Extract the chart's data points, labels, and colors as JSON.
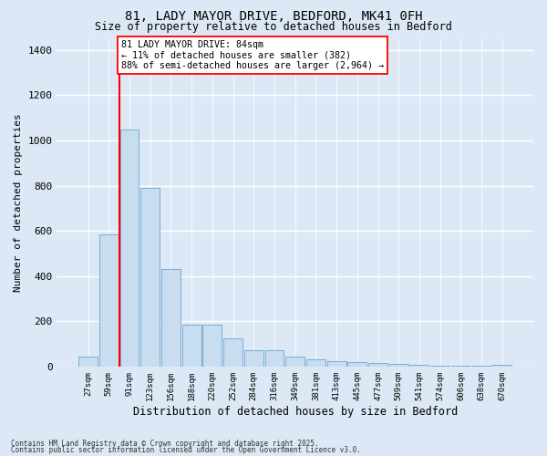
{
  "title": "81, LADY MAYOR DRIVE, BEDFORD, MK41 0FH",
  "subtitle": "Size of property relative to detached houses in Bedford",
  "xlabel": "Distribution of detached houses by size in Bedford",
  "ylabel": "Number of detached properties",
  "bar_color": "#c9ddf0",
  "bar_edge_color": "#7aadd4",
  "bg_color": "#dce8f5",
  "fig_bg": "#dce8f5",
  "grid_color": "#ffffff",
  "categories": [
    "27sqm",
    "59sqm",
    "91sqm",
    "123sqm",
    "156sqm",
    "188sqm",
    "220sqm",
    "252sqm",
    "284sqm",
    "316sqm",
    "349sqm",
    "381sqm",
    "413sqm",
    "445sqm",
    "477sqm",
    "509sqm",
    "541sqm",
    "574sqm",
    "606sqm",
    "638sqm",
    "670sqm"
  ],
  "values": [
    45,
    585,
    1050,
    790,
    430,
    185,
    185,
    125,
    70,
    70,
    45,
    30,
    25,
    20,
    15,
    10,
    8,
    5,
    2,
    2,
    8
  ],
  "ylim": [
    0,
    1450
  ],
  "yticks": [
    0,
    200,
    400,
    600,
    800,
    1000,
    1200,
    1400
  ],
  "redline_index": 2,
  "annotation_line1": "81 LADY MAYOR DRIVE: 84sqm",
  "annotation_line2": "← 11% of detached houses are smaller (382)",
  "annotation_line3": "88% of semi-detached houses are larger (2,964) →",
  "footnote1": "Contains HM Land Registry data © Crown copyright and database right 2025.",
  "footnote2": "Contains public sector information licensed under the Open Government Licence v3.0."
}
